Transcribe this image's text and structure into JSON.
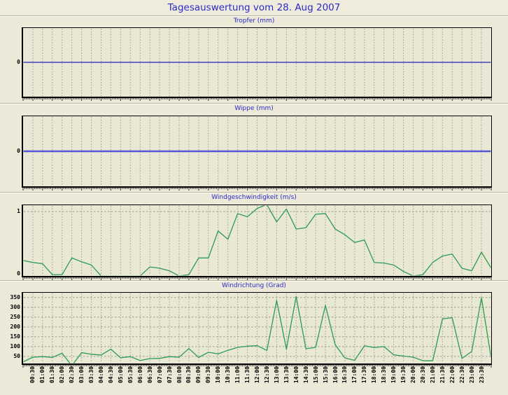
{
  "page": {
    "title": "Tagesauswertung vom 28. Aug 2007"
  },
  "colors": {
    "background": "#ece9d8",
    "plot_background": "#e9e8d5",
    "title_blue": "#2a2ac8",
    "grid_gray": "#9e9a8c",
    "axis_black": "#000000",
    "tropfer_line": "#2222b8",
    "wippe_line": "#5555d5",
    "wind_line": "#2c9b53"
  },
  "x_axis": {
    "gridline_labels": [
      "00:30",
      "01:00",
      "01:30",
      "02:00",
      "02:30",
      "03:00",
      "03:30",
      "04:00",
      "04:30",
      "05:00",
      "05:30",
      "06:00",
      "06:30",
      "07:00",
      "07:30",
      "08:00",
      "08:30",
      "09:00",
      "09:30",
      "10:00",
      "10:30",
      "11:00",
      "11:30",
      "12:00",
      "12:30",
      "13:00",
      "13:30",
      "14:00",
      "14:30",
      "15:00",
      "15:30",
      "16:00",
      "16:30",
      "17:00",
      "17:30",
      "18:00",
      "18:30",
      "19:00",
      "19:30",
      "20:00",
      "20:30",
      "21:00",
      "21:30",
      "22:00",
      "22:30",
      "23:00",
      "23:30"
    ],
    "series_times": [
      "00:00",
      "00:30",
      "01:00",
      "01:30",
      "02:00",
      "02:30",
      "03:00",
      "03:30",
      "04:00",
      "04:30",
      "05:00",
      "05:30",
      "06:00",
      "06:30",
      "07:00",
      "07:30",
      "08:00",
      "08:30",
      "09:00",
      "09:30",
      "10:00",
      "10:30",
      "11:00",
      "11:30",
      "12:00",
      "12:30",
      "13:00",
      "13:30",
      "14:00",
      "14:30",
      "15:00",
      "15:30",
      "16:00",
      "16:30",
      "17:00",
      "17:30",
      "18:00",
      "18:30",
      "19:00",
      "19:30",
      "20:00",
      "20:30",
      "21:00",
      "21:30",
      "22:00",
      "22:30",
      "23:00",
      "23:30",
      "24:00"
    ],
    "step_minutes": 30
  },
  "chart_data": [
    {
      "type": "line",
      "title": "Tropfer (mm)",
      "ylabel": "mm",
      "constant_value": 0,
      "values": null,
      "ylim": [
        -0.5,
        0.5
      ],
      "yticks": [
        0
      ],
      "grid_values": [],
      "line_color": "#2222b8",
      "line_width": 1.3
    },
    {
      "type": "line",
      "title": "Wippe (mm)",
      "ylabel": "mm",
      "constant_value": 0,
      "values": null,
      "ylim": [
        -0.5,
        0.5
      ],
      "yticks": [
        0
      ],
      "grid_values": [],
      "line_color": "#5555d5",
      "line_width": 2.4
    },
    {
      "type": "line",
      "title": "Windgeschwindigkeit (m/s)",
      "ylabel": "m/s",
      "constant_value": null,
      "values": [
        0.24,
        0.21,
        0.19,
        0.02,
        0.02,
        0.28,
        0.22,
        0.17,
        0,
        0,
        0,
        0,
        0,
        0.14,
        0.12,
        0.08,
        0,
        0.02,
        0.28,
        0.28,
        0.7,
        0.57,
        0.97,
        0.92,
        1.05,
        1.11,
        0.84,
        1.04,
        0.73,
        0.75,
        0.96,
        0.97,
        0.73,
        0.64,
        0.52,
        0.56,
        0.21,
        0.2,
        0.17,
        0.07,
        0,
        0.02,
        0.21,
        0.31,
        0.34,
        0.12,
        0.08,
        0.37,
        0.12
      ],
      "ylim": [
        0,
        1.1
      ],
      "yticks": [
        0,
        1
      ],
      "grid_values": [
        1
      ],
      "line_color": "#2c9b53",
      "line_width": 1.3
    },
    {
      "type": "line",
      "title": "Windrichtung (Grad)",
      "ylabel": "Grad",
      "constant_value": null,
      "values": [
        22,
        46,
        49,
        45,
        66,
        3,
        69,
        61,
        57,
        87,
        43,
        49,
        29,
        39,
        40,
        49,
        46,
        90,
        45,
        71,
        63,
        81,
        96,
        102,
        105,
        80,
        335,
        87,
        355,
        89,
        96,
        310,
        110,
        42,
        30,
        104,
        95,
        100,
        58,
        52,
        46,
        28,
        28,
        241,
        247,
        40,
        75,
        348,
        40
      ],
      "ylim": [
        14,
        374
      ],
      "yticks": [
        50,
        100,
        150,
        200,
        250,
        300,
        350
      ],
      "grid_values": [
        50,
        100,
        150,
        200,
        250,
        300,
        350
      ],
      "line_color": "#2c9b53",
      "line_width": 1.3
    }
  ]
}
